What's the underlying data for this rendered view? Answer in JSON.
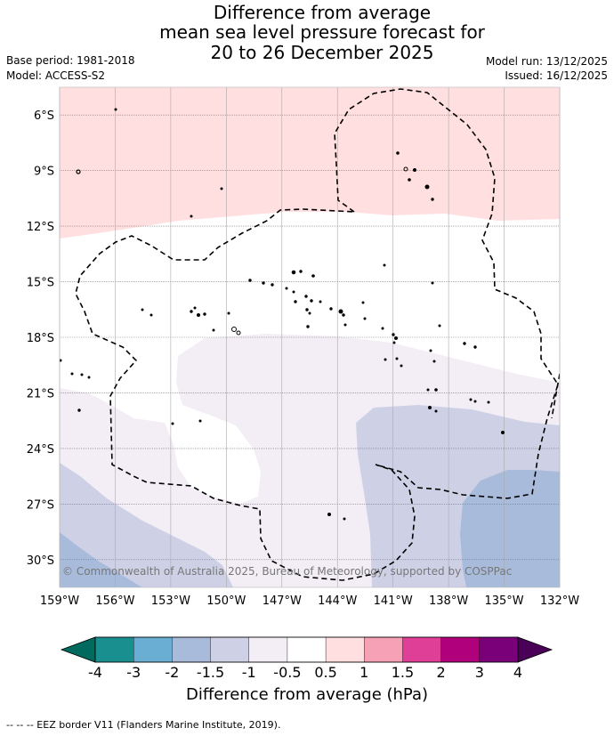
{
  "title": {
    "line1": "Difference from average",
    "line2": "mean sea level pressure forecast for",
    "line3": "20 to 26 December 2025"
  },
  "meta": {
    "base_period": "Base period: 1981-2018",
    "model": "Model: ACCESS-S2",
    "model_run": "Model run: 13/12/2025",
    "issued": "Issued: 16/12/2025"
  },
  "map": {
    "lon_range": [
      -159,
      -132
    ],
    "lat_range": [
      -31.5,
      -4.5
    ],
    "lat_ticks": [
      {
        "value": -6,
        "label": "6°S"
      },
      {
        "value": -9,
        "label": "9°S"
      },
      {
        "value": -12,
        "label": "12°S"
      },
      {
        "value": -15,
        "label": "15°S"
      },
      {
        "value": -18,
        "label": "18°S"
      },
      {
        "value": -21,
        "label": "21°S"
      },
      {
        "value": -24,
        "label": "24°S"
      },
      {
        "value": -27,
        "label": "27°S"
      },
      {
        "value": -30,
        "label": "30°S"
      }
    ],
    "lon_ticks": [
      {
        "value": -159,
        "label": "159°W"
      },
      {
        "value": -156,
        "label": "156°W"
      },
      {
        "value": -153,
        "label": "153°W"
      },
      {
        "value": -150,
        "label": "150°W"
      },
      {
        "value": -147,
        "label": "147°W"
      },
      {
        "value": -144,
        "label": "144°W"
      },
      {
        "value": -141,
        "label": "141°W"
      },
      {
        "value": -138,
        "label": "138°W"
      },
      {
        "value": -135,
        "label": "135°W"
      },
      {
        "value": -132,
        "label": "132°W"
      }
    ],
    "copyright": "© Commonwealth of Australia 2025, Bureau of Meteorology, supported by COSPPac"
  },
  "colorbar": {
    "label": "Difference from average (hPa)",
    "ticks": [
      "-4",
      "-3",
      "-2",
      "-1.5",
      "-1",
      "-0.5",
      "0.5",
      "1",
      "1.5",
      "2",
      "3",
      "4"
    ],
    "colors": [
      "#1a8f8f",
      "#6aaed4",
      "#a8bbdb",
      "#ced1e6",
      "#f3edf5",
      "#ffffff",
      "#ffdfe0",
      "#f7a1b6",
      "#e03f97",
      "#b0007c",
      "#7a007a"
    ],
    "low_extend_color": "#006a5e",
    "high_extend_color": "#4a0057"
  },
  "colors": {
    "pos_0_5": "#ffdfe0",
    "neg_0_5": "#f3edf5",
    "neg_1": "#ced1e6",
    "neg_1_5": "#a8bbdb",
    "neg_2": "#6aaed4"
  },
  "footnote": "--  --  -- EEZ border V11 (Flanders Marine Institute, 2019)."
}
